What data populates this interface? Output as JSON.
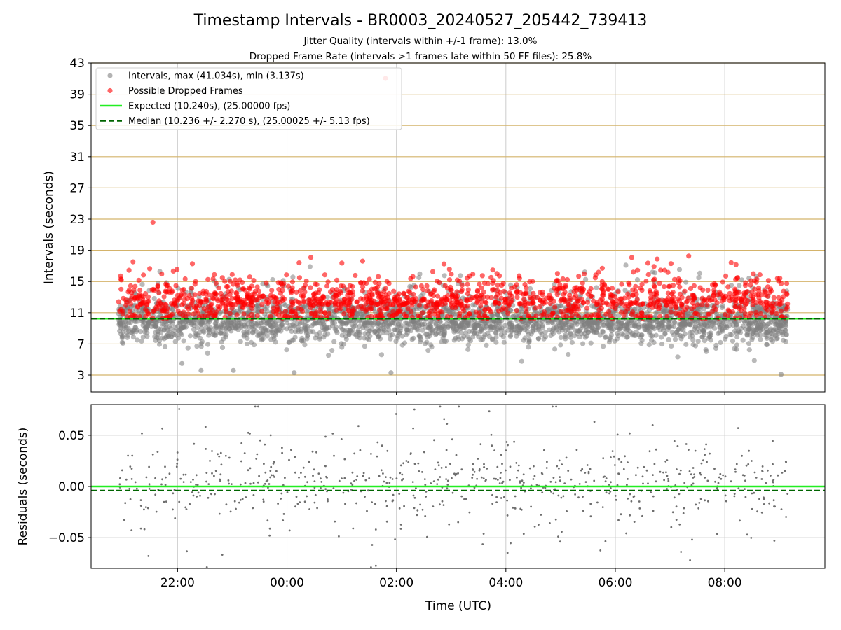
{
  "title": "Timestamp Intervals - BR0003_20240527_205442_739413",
  "subtitle_lines": [
    "Jitter Quality (intervals within +/-1 frame): 13.0%",
    "Dropped Frame Rate (intervals >1 frames late within 50 FF files): 25.8%"
  ],
  "colors": {
    "intervals": "#808080",
    "dropped": "#ff0000",
    "expected": "#22ee22",
    "median": "#006400",
    "gold_grid": "#d4b36a",
    "grid": "#cccccc"
  },
  "chart_data": [
    {
      "type": "scatter",
      "ylabel": "Intervals (seconds)",
      "ylim": [
        0.85,
        43
      ],
      "yticks": [
        "3",
        "7",
        "11",
        "15",
        "19",
        "23",
        "27",
        "31",
        "35",
        "39",
        "43"
      ],
      "xlim_hours": [
        20.42,
        33.83
      ],
      "legend": {
        "placement": "upper-left",
        "entries": [
          {
            "label": "Intervals, max (41.034s), min (3.137s)",
            "marker": "circle",
            "color": "#808080"
          },
          {
            "label": "Possible Dropped Frames",
            "marker": "circle",
            "color": "#ff0000"
          },
          {
            "label": "Expected (10.240s), (25.00000 fps)",
            "marker": "solid-line",
            "color": "#22ee22"
          },
          {
            "label": "Median (10.236 +/- 2.270 s), (25.00025 +/- 5.13 fps)",
            "marker": "dashed-line",
            "color": "#006400"
          }
        ]
      },
      "expected": 10.24,
      "median": 10.236,
      "stats": {
        "max": 41.034,
        "min": 3.137,
        "std": 2.27
      },
      "time_range_hours": [
        20.92,
        33.15
      ],
      "outliers_dropped": [
        [
          21.55,
          22.6
        ],
        [
          25.8,
          41.03
        ],
        [
          22.08,
          4.5
        ],
        [
          22.43,
          3.6
        ],
        [
          23.02,
          3.6
        ],
        [
          24.13,
          3.3
        ],
        [
          25.9,
          3.3
        ],
        [
          33.03,
          3.1
        ]
      ],
      "approx_point_count": 4000,
      "dropped_threshold": 10.24,
      "dropped_fraction": 0.258
    },
    {
      "type": "scatter",
      "ylabel": "Residuals (seconds)",
      "ylim": [
        -0.08,
        0.08
      ],
      "yticks": [
        "0.05",
        "0.00",
        "−0.05"
      ],
      "xlabel": "Time (UTC)",
      "xticks": [
        "22:00",
        "00:00",
        "02:00",
        "04:00",
        "06:00",
        "08:00"
      ],
      "xtick_hours": [
        22,
        24,
        26,
        28,
        30,
        32
      ],
      "expected": 0.0,
      "median": -0.004,
      "approx_point_count": 700
    }
  ]
}
